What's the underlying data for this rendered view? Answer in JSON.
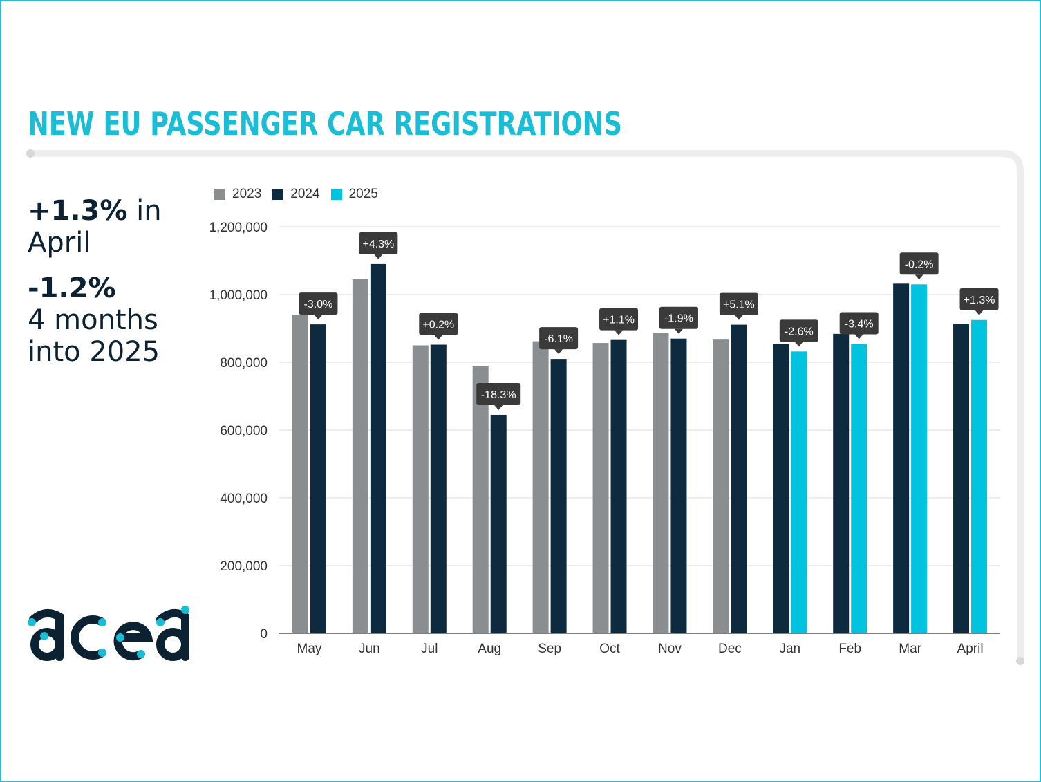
{
  "title": "NEW EU PASSENGER CAR REGISTRATIONS",
  "highlights": {
    "april_change": "+1.3%",
    "april_suffix": " in",
    "april_label": "April",
    "ytd_change": "-1.2%",
    "ytd_label": "4 months",
    "ytd_label2": "into 2025"
  },
  "logo_text": "acea",
  "colors": {
    "accent": "#19bdd6",
    "y2023": "#8b8e90",
    "y2024": "#0d2a3f",
    "y2025": "#00c3df",
    "badge": "#3a3a3a"
  },
  "chart_data": {
    "type": "bar",
    "title": "NEW EU PASSENGER CAR REGISTRATIONS",
    "xlabel": "",
    "ylabel": "",
    "ylim": [
      0,
      1200000
    ],
    "yticks": [
      0,
      200000,
      400000,
      600000,
      800000,
      1000000,
      1200000
    ],
    "ytick_labels": [
      "0",
      "200,000",
      "400,000",
      "600,000",
      "800,000",
      "1,000,000",
      "1,200,000"
    ],
    "legend_position": "top-left",
    "categories": [
      "May",
      "Jun",
      "Jul",
      "Aug",
      "Sep",
      "Oct",
      "Nov",
      "Dec",
      "Jan",
      "Feb",
      "Mar",
      "April"
    ],
    "series": [
      {
        "name": "2023",
        "color": "#8b8e90",
        "values": [
          940000,
          1045000,
          850000,
          788000,
          862000,
          857000,
          887000,
          867000,
          null,
          null,
          null,
          null
        ]
      },
      {
        "name": "2024",
        "color": "#0d2a3f",
        "values": [
          912000,
          1090000,
          852000,
          645000,
          810000,
          866000,
          870000,
          911000,
          854000,
          884000,
          1032000,
          913000
        ]
      },
      {
        "name": "2025",
        "color": "#00c3df",
        "values": [
          null,
          null,
          null,
          null,
          null,
          null,
          null,
          null,
          832000,
          854000,
          1030000,
          925000
        ]
      }
    ],
    "change_labels": [
      "-3.0%",
      "+4.3%",
      "+0.2%",
      "-18.3%",
      "-6.1%",
      "+1.1%",
      "-1.9%",
      "+5.1%",
      "-2.6%",
      "-3.4%",
      "-0.2%",
      "+1.3%"
    ]
  }
}
